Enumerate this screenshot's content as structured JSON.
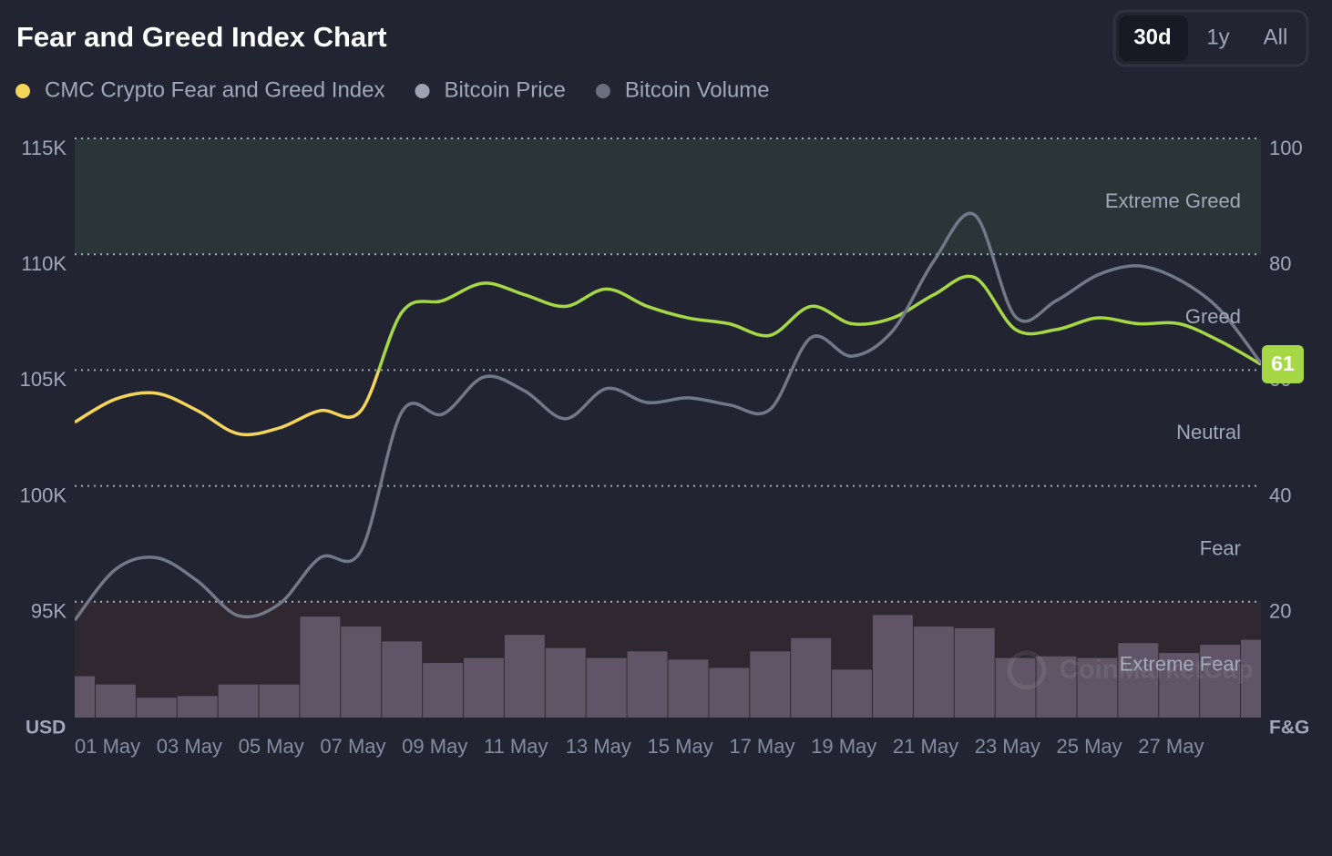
{
  "title": "Fear and Greed Index Chart",
  "range_buttons": [
    "30d",
    "1y",
    "All"
  ],
  "active_range": "30d",
  "chart_data": {
    "type": "line",
    "categories": [
      "01 May",
      null,
      "03 May",
      null,
      "05 May",
      null,
      "07 May",
      null,
      "09 May",
      null,
      "11 May",
      null,
      "13 May",
      null,
      "15 May",
      null,
      "17 May",
      null,
      "19 May",
      null,
      "21 May",
      null,
      "23 May",
      null,
      "25 May",
      null,
      "27 May",
      null,
      null,
      null
    ],
    "ylabel": "USD",
    "y2label": "F&G",
    "ylim": [
      90,
      115
    ],
    "yticks": [
      {
        "value": 95,
        "label": "95K"
      },
      {
        "value": 100,
        "label": "100K"
      },
      {
        "value": 105,
        "label": "105K"
      },
      {
        "value": 110,
        "label": "110K"
      },
      {
        "value": 115,
        "label": "115K"
      }
    ],
    "y2lim": [
      0,
      100
    ],
    "y2ticks": [
      20,
      40,
      60,
      80,
      100
    ],
    "y3lim": [
      0,
      350
    ],
    "grid": true,
    "zones": [
      {
        "name": "Extreme Fear",
        "from": 0,
        "to": 20,
        "line_color": "#ea3943",
        "fill": "#302831"
      },
      {
        "name": "Fear",
        "from": 20,
        "to": 40,
        "line_color": "#ea8c00"
      },
      {
        "name": "Neutral",
        "from": 40,
        "to": 60,
        "line_color": "#f3d55b"
      },
      {
        "name": "Greed",
        "from": 60,
        "to": 80,
        "line_color": "#a6d846"
      },
      {
        "name": "Extreme Greed",
        "from": 80,
        "to": 100,
        "line_color": "#16c784",
        "fill": "#2a3538"
      }
    ],
    "series": [
      {
        "name": "CMC Crypto Fear and Greed Index",
        "color": "#f3d55b",
        "axis": "y2",
        "values": [
          51,
          55,
          56,
          53,
          49,
          50,
          53,
          53,
          70,
          72,
          75,
          73,
          71,
          74,
          71,
          69,
          68,
          66,
          71,
          68,
          69,
          73,
          76,
          67,
          67,
          69,
          68,
          68,
          65,
          61
        ]
      },
      {
        "name": "Bitcoin Price",
        "color": "#9ea3b4",
        "values": [
          94.2,
          96.4,
          96.9,
          95.9,
          94.4,
          94.9,
          96.9,
          97.2,
          103.2,
          103.1,
          104.7,
          104.1,
          102.9,
          104.2,
          103.6,
          103.8,
          103.5,
          103.3,
          106.4,
          105.6,
          106.7,
          109.7,
          111.7,
          107.3,
          108.0,
          109.1,
          109.5,
          108.9,
          107.6,
          105.3
        ]
      },
      {
        "name": "Bitcoin Volume",
        "type": "bar",
        "color": "#6b6e7c",
        "bar_color": "#5f5566",
        "axis": "y3",
        "values": [
          25,
          20,
          12,
          13,
          20,
          20,
          61,
          55,
          46,
          33,
          36,
          50,
          42,
          36,
          40,
          35,
          30,
          40,
          48,
          29,
          62,
          55,
          54,
          36,
          37,
          36,
          45,
          39,
          44,
          47
        ]
      }
    ],
    "watermark": "CoinMarketCap"
  }
}
